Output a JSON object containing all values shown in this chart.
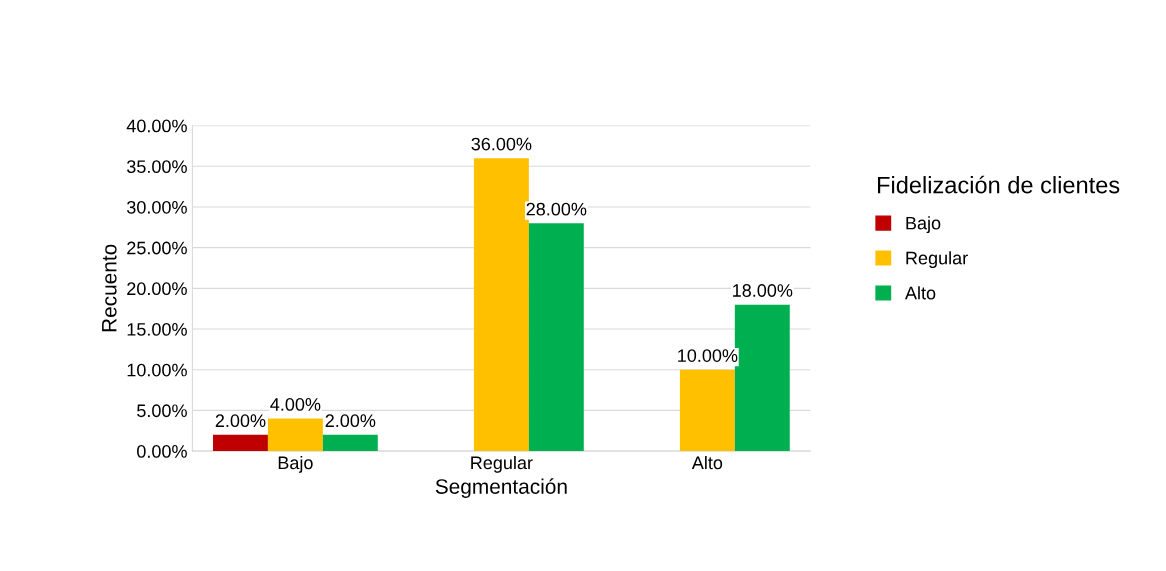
{
  "chart_data": {
    "type": "bar",
    "xlabel": "Segmentación",
    "ylabel": "Recuento",
    "legend_title": "Fidelización de clientes",
    "categories": [
      "Bajo",
      "Regular",
      "Alto"
    ],
    "series": [
      {
        "name": "Bajo",
        "color": "#c00000",
        "values": [
          2,
          null,
          null
        ],
        "value_labels": [
          "2.00%",
          null,
          null
        ]
      },
      {
        "name": "Regular",
        "color": "#ffc000",
        "values": [
          4,
          36,
          10
        ],
        "value_labels": [
          "4.00%",
          "36.00%",
          "10.00%"
        ]
      },
      {
        "name": "Alto",
        "color": "#00b050",
        "values": [
          2,
          28,
          18
        ],
        "value_labels": [
          "2.00%",
          "28.00%",
          "18.00%"
        ]
      }
    ],
    "ylim": [
      0,
      40
    ],
    "yticks": [
      {
        "value": 0,
        "label": "0.00%"
      },
      {
        "value": 5,
        "label": "5.00%"
      },
      {
        "value": 10,
        "label": "10.00%"
      },
      {
        "value": 15,
        "label": "15.00%"
      },
      {
        "value": 20,
        "label": "20.00%"
      },
      {
        "value": 25,
        "label": "25.00%"
      },
      {
        "value": 30,
        "label": "30.00%"
      },
      {
        "value": 35,
        "label": "35.00%"
      },
      {
        "value": 40,
        "label": "40.00%"
      }
    ],
    "grid": "y",
    "legend": "right"
  }
}
